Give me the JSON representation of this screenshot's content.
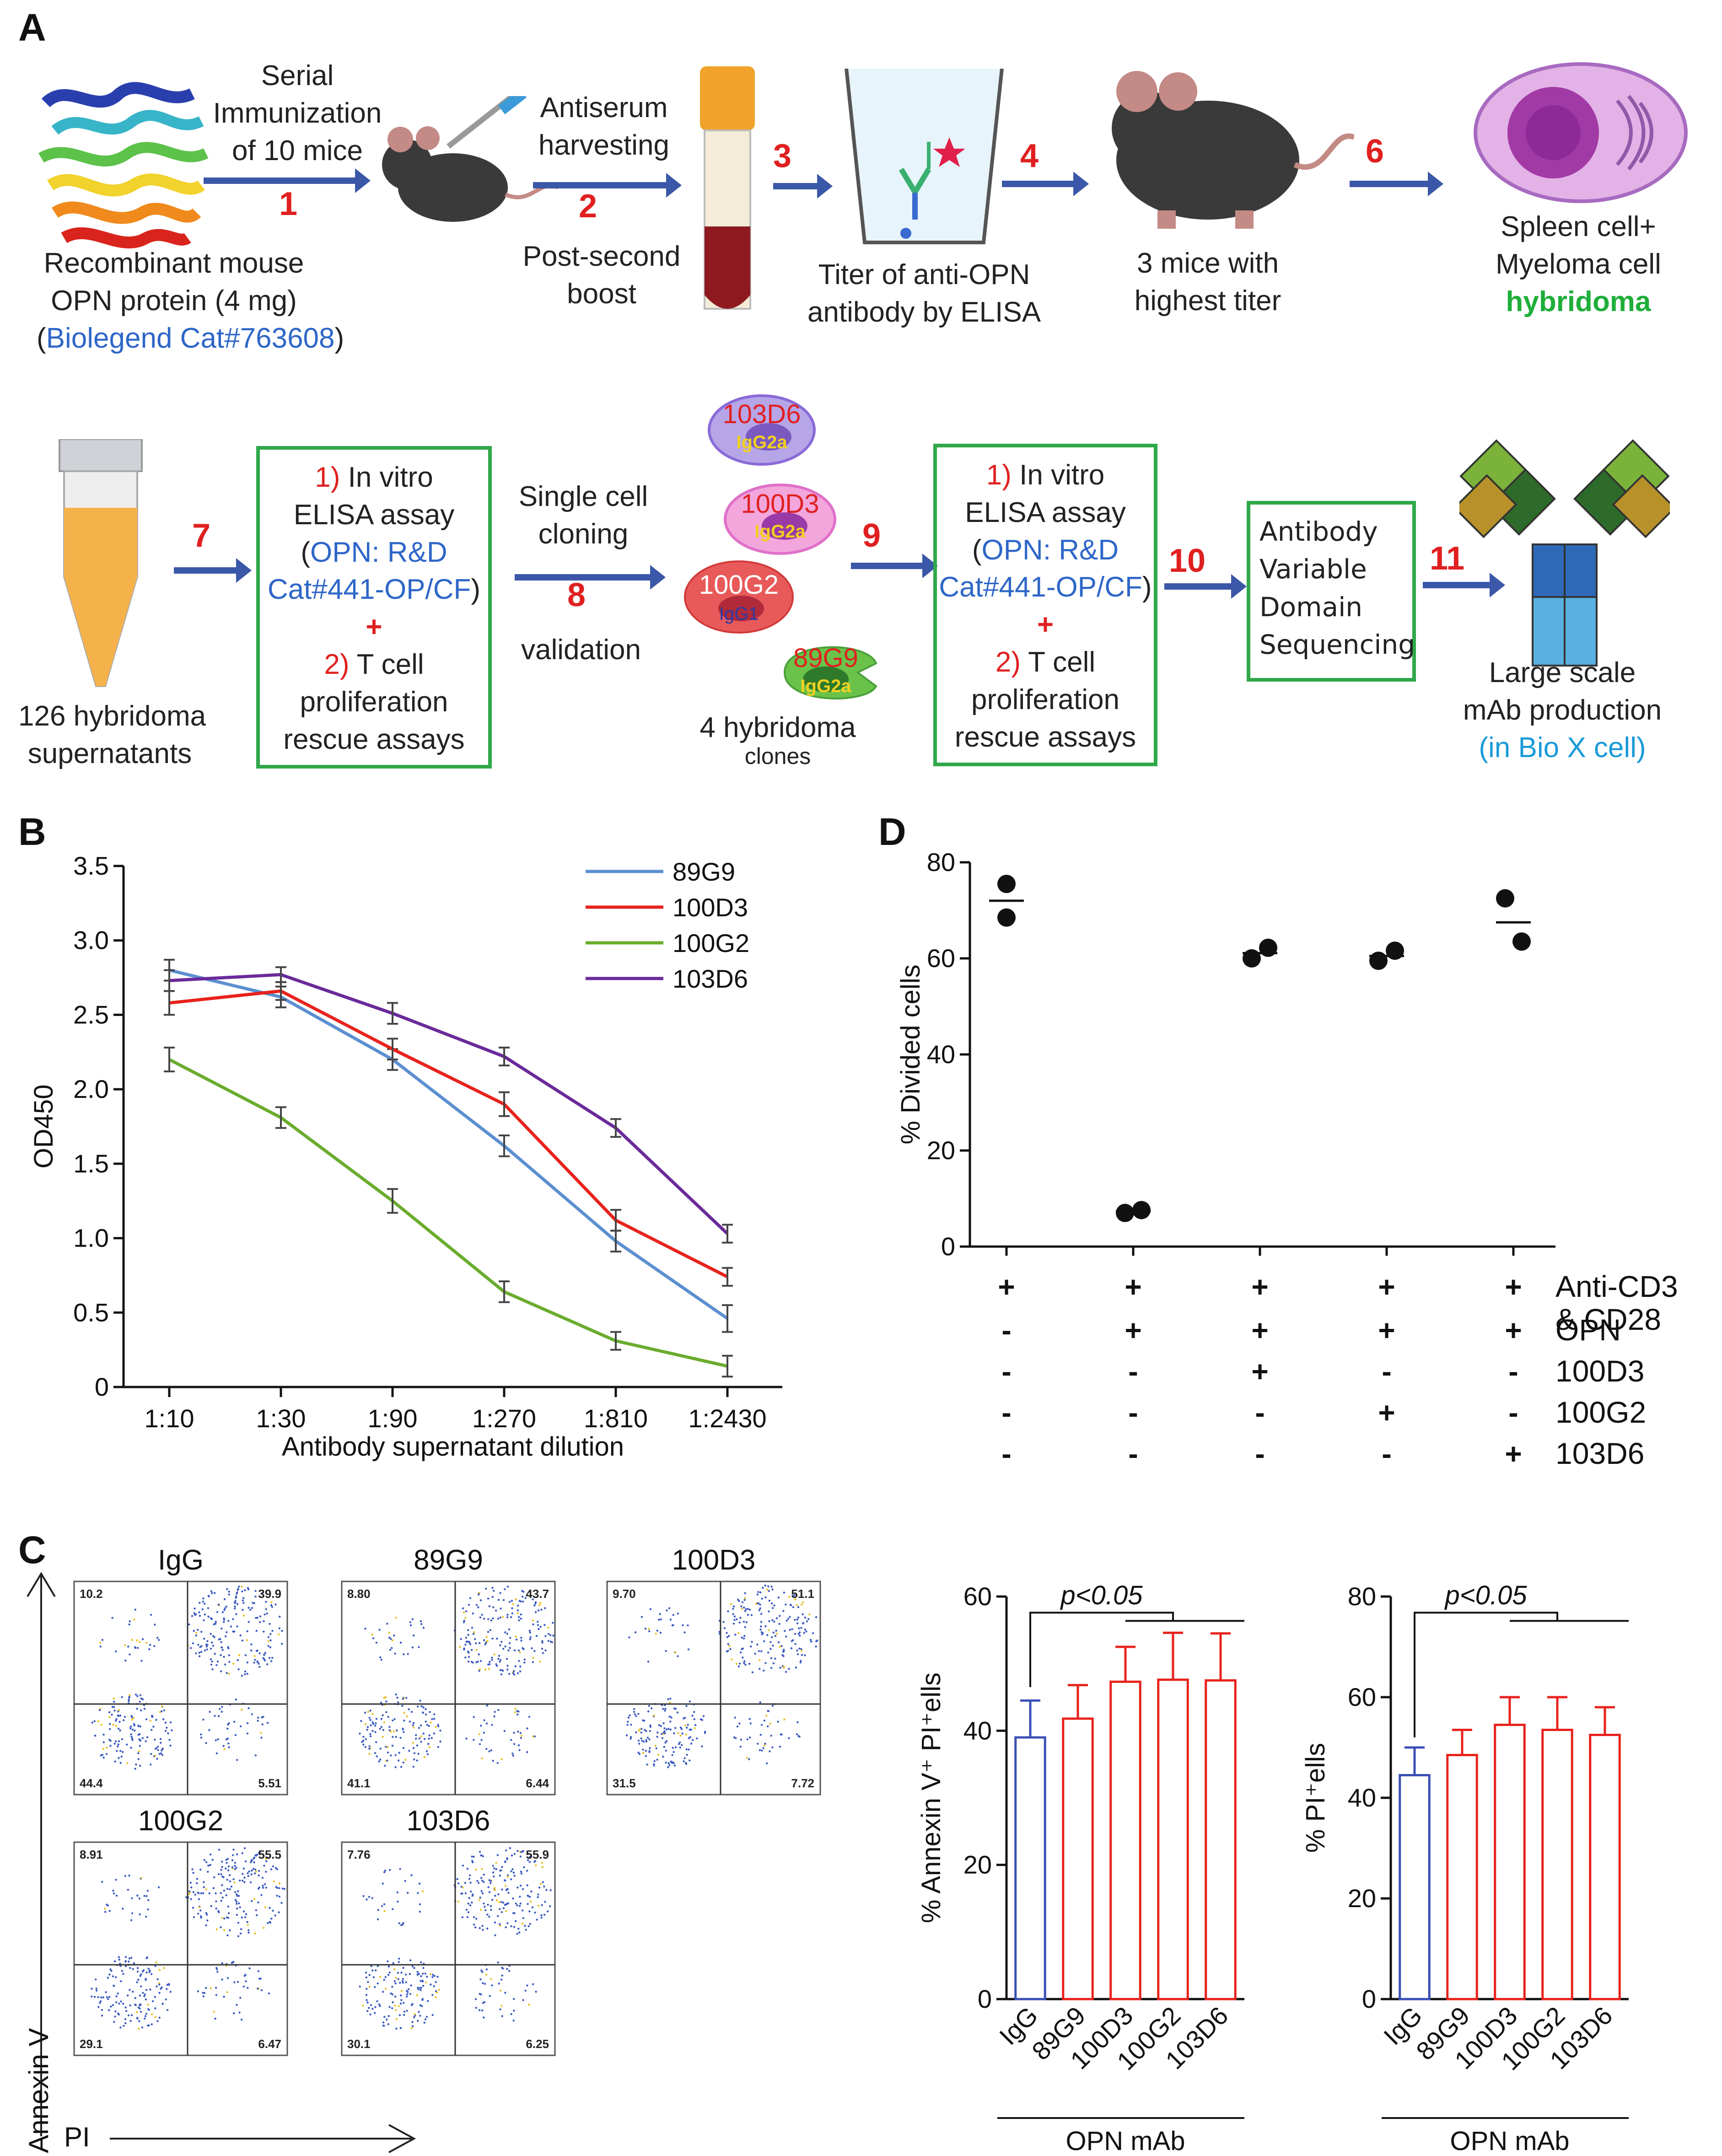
{
  "panels": {
    "A": "A",
    "B": "B",
    "C": "C",
    "D": "D"
  },
  "panelA": {
    "protein_label": [
      "Recombinant mouse",
      "OPN protein (4 mg)"
    ],
    "protein_source_open": "(",
    "protein_source": "Biolegend Cat#763608",
    "protein_source_close": ")",
    "step1_text": [
      "Serial",
      "Immunization",
      "of 10 mice"
    ],
    "step2_text_top": [
      "Antiserum",
      "harvesting"
    ],
    "step2_text_bottom": [
      "Post-second",
      "boost"
    ],
    "elisa_label": [
      "Titer of anti-OPN",
      "antibody by ELISA"
    ],
    "mice_label": [
      "3 mice with",
      "highest titer"
    ],
    "hybridoma_label": [
      "Spleen cell+",
      "Myeloma cell"
    ],
    "hybridoma_word": "hybridoma",
    "supernatant_label": [
      "126 hybridoma",
      "supernatants"
    ],
    "box1": {
      "l1_num": "1)",
      "l1": " In vitro",
      "l2": "ELISA assay",
      "l3_open": "(",
      "l3": "OPN: R&D",
      "l4": "Cat#441-OP/CF",
      "l4_close": ")",
      "plus": "+",
      "l5_num": "2)",
      "l5": " T cell",
      "l6": "proliferation",
      "l7": "rescue assays"
    },
    "cloning_top": [
      "Single cell",
      "cloning"
    ],
    "cloning_bottom": "validation",
    "clones": [
      {
        "name": "103D6",
        "isotype": "IgG2a"
      },
      {
        "name": "100D3",
        "isotype": "IgG2a"
      },
      {
        "name": "100G2",
        "isotype": "IgG1"
      },
      {
        "name": "89G9",
        "isotype": "IgG2a"
      }
    ],
    "clones_caption": "4 hybridoma",
    "clones_caption2": "clones",
    "seq_box": [
      "Antibody",
      "Variable",
      "Domain",
      "Sequencing"
    ],
    "production_label": [
      "Large scale",
      "mAb production"
    ],
    "production_site": "(in Bio X cell)",
    "steps": [
      "1",
      "2",
      "3",
      "4",
      "6",
      "7",
      "8",
      "9",
      "10",
      "11"
    ]
  },
  "chart_data": [
    {
      "panel": "B",
      "type": "line",
      "categories": [
        "1:10",
        "1:30",
        "1:90",
        "1:270",
        "1:810",
        "1:2430"
      ],
      "xlabel": "Antibody supernatant dilution",
      "ylabel": "OD450",
      "ylim": [
        0,
        3.5
      ],
      "yticks": [
        "0",
        "0.5",
        "1.0",
        "1.5",
        "2.0",
        "2.5",
        "3.0",
        "3.5"
      ],
      "legend_position": "top-right",
      "series": [
        {
          "name": "89G9",
          "color": "#5b8fd0",
          "values": [
            2.8,
            2.62,
            2.2,
            1.62,
            0.98,
            0.46
          ],
          "err": [
            0.07,
            0.07,
            0.07,
            0.07,
            0.07,
            0.09
          ]
        },
        {
          "name": "100D3",
          "color": "#e8221c",
          "values": [
            2.58,
            2.66,
            2.27,
            1.9,
            1.12,
            0.74
          ],
          "err": [
            0.08,
            0.06,
            0.07,
            0.08,
            0.07,
            0.06
          ]
        },
        {
          "name": "100G2",
          "color": "#6aac2e",
          "values": [
            2.2,
            1.81,
            1.25,
            0.64,
            0.31,
            0.14
          ],
          "err": [
            0.08,
            0.07,
            0.08,
            0.07,
            0.06,
            0.07
          ]
        },
        {
          "name": "103D6",
          "color": "#6a2a9a",
          "values": [
            2.73,
            2.77,
            2.51,
            2.22,
            1.74,
            1.03
          ],
          "err": [
            0.07,
            0.05,
            0.07,
            0.06,
            0.06,
            0.06
          ]
        }
      ]
    },
    {
      "panel": "D",
      "type": "scatter",
      "ylabel": "% Divided cells",
      "ylim": [
        0,
        80
      ],
      "yticks": [
        "0",
        "20",
        "40",
        "60",
        "80"
      ],
      "groups": [
        {
          "points": [
            75.5,
            68.5
          ],
          "mean": 72.0
        },
        {
          "points": [
            7.0,
            7.6
          ],
          "mean": 7.3
        },
        {
          "points": [
            60.0,
            62.2
          ],
          "mean": 61.1
        },
        {
          "points": [
            59.5,
            61.6
          ],
          "mean": 60.5
        },
        {
          "points": [
            72.5,
            63.5
          ],
          "mean": 67.5
        }
      ],
      "conditions": [
        {
          "label": [
            "Anti-CD3",
            "& CD28"
          ],
          "signs": [
            "+",
            "+",
            "+",
            "+",
            "+"
          ]
        },
        {
          "label": [
            "OPN"
          ],
          "signs": [
            "-",
            "+",
            "+",
            "+",
            "+"
          ]
        },
        {
          "label": [
            "100D3"
          ],
          "signs": [
            "-",
            "-",
            "+",
            "-",
            "-"
          ]
        },
        {
          "label": [
            "100G2"
          ],
          "signs": [
            "-",
            "-",
            "-",
            "+",
            "-"
          ]
        },
        {
          "label": [
            "103D6"
          ],
          "signs": [
            "-",
            "-",
            "-",
            "-",
            "+"
          ]
        }
      ]
    },
    {
      "panel": "C-left",
      "type": "bar",
      "categories": [
        "IgG",
        "89G9",
        "100D3",
        "100G2",
        "103D6"
      ],
      "values": [
        39.0,
        41.8,
        47.3,
        47.6,
        47.5
      ],
      "err": [
        5.5,
        5.0,
        5.2,
        7.0,
        7.0
      ],
      "colors": [
        "#3a4fb5",
        "#e8221c",
        "#e8221c",
        "#e8221c",
        "#e8221c"
      ],
      "ylabel": "% Annexin V⁺ PI⁺ells",
      "xlabel": "OPN mAb",
      "ylim": [
        0,
        60
      ],
      "yticks": [
        "0",
        "20",
        "40",
        "60"
      ],
      "annotation": "p<0.05"
    },
    {
      "panel": "C-right",
      "type": "bar",
      "categories": [
        "IgG",
        "89G9",
        "100D3",
        "100G2",
        "103D6"
      ],
      "values": [
        44.5,
        48.5,
        54.5,
        53.5,
        52.5
      ],
      "err": [
        5.5,
        5.0,
        5.5,
        6.5,
        5.5
      ],
      "colors": [
        "#3a4fb5",
        "#e8221c",
        "#e8221c",
        "#e8221c",
        "#e8221c"
      ],
      "ylabel": "% PI⁺ells",
      "xlabel": "OPN mAb",
      "ylim": [
        0,
        80
      ],
      "yticks": [
        "0",
        "20",
        "40",
        "60",
        "80"
      ],
      "annotation": "p<0.05"
    }
  ],
  "flow": {
    "x_axis_label": "PI",
    "y_axis_label": "Annexin V",
    "plots": [
      {
        "title": "IgG",
        "q": [
          "10.2",
          "39.9",
          "44.4",
          "5.51"
        ]
      },
      {
        "title": "89G9",
        "q": [
          "8.80",
          "43.7",
          "41.1",
          "6.44"
        ]
      },
      {
        "title": "100D3",
        "q": [
          "9.70",
          "51.1",
          "31.5",
          "7.72"
        ]
      },
      {
        "title": "100G2",
        "q": [
          "8.91",
          "55.5",
          "29.1",
          "6.47"
        ]
      },
      {
        "title": "103D6",
        "q": [
          "7.76",
          "55.9",
          "30.1",
          "6.25"
        ]
      }
    ]
  },
  "colors": {
    "step_red": "#e02020",
    "arrow_blue": "#3b57a8",
    "box_green": "#2fa84a",
    "link_blue": "#2e66c8"
  }
}
